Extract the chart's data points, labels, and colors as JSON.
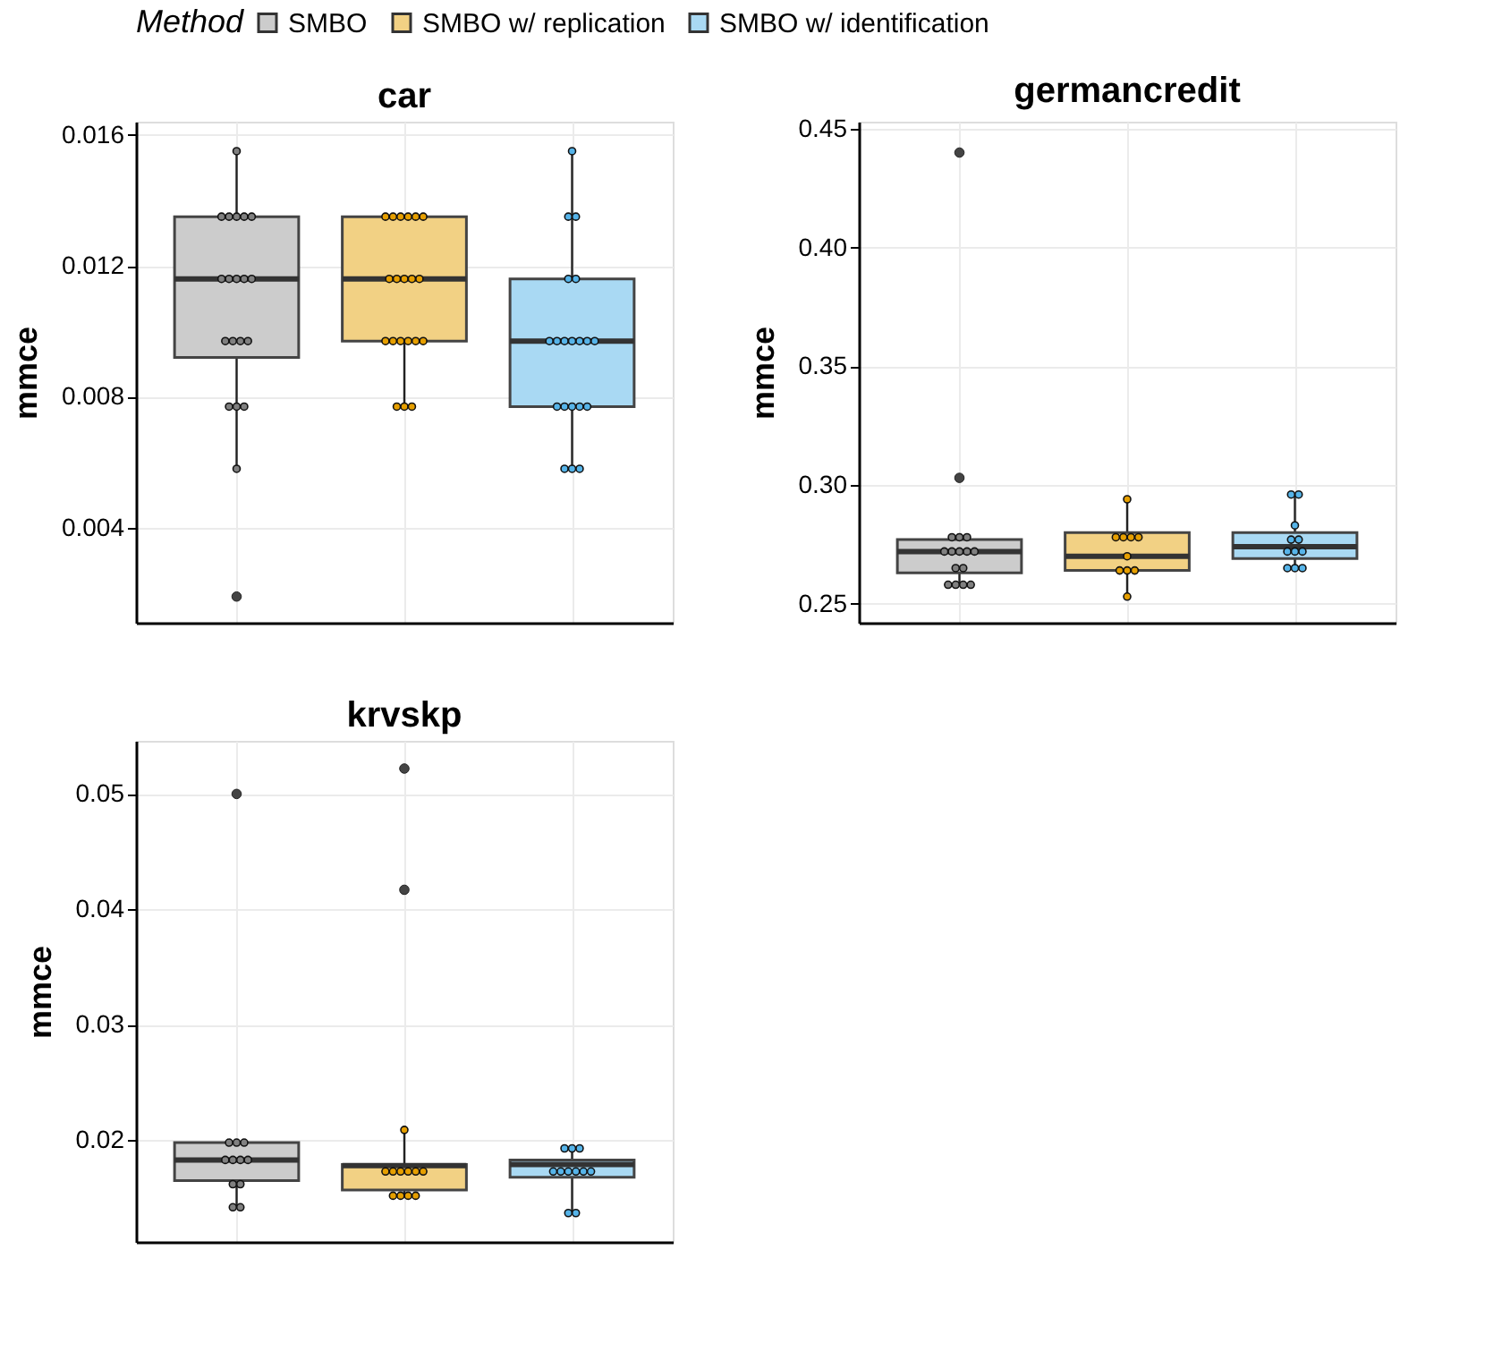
{
  "chart_data": [
    {
      "type": "box",
      "title": "car",
      "ylabel": "mmce",
      "legend": "top",
      "legend_title": "Method",
      "categories": [
        null,
        null,
        null
      ],
      "series": [
        {
          "type": "box",
          "name": "SMBO",
          "color": "#cccccc",
          "boxes": [
            {
              "low": 0.0058,
              "q1": 0.0092,
              "median": 0.0116,
              "q3": 0.0135,
              "high": 0.0155,
              "outliers": [
                0.0019
              ]
            },
            null,
            null
          ]
        },
        {
          "type": "box",
          "name": "SMBO w/ replication",
          "color": "#f2d184",
          "boxes": [
            null,
            {
              "low": 0.0077,
              "q1": 0.0097,
              "median": 0.0116,
              "q3": 0.0135,
              "high": 0.0135
            },
            null
          ]
        },
        {
          "type": "box",
          "name": "SMBO w/ identification",
          "color": "#a9d9f3",
          "boxes": [
            null,
            null,
            {
              "low": 0.0058,
              "q1": 0.0077,
              "median": 0.0097,
              "q3": 0.0116,
              "high": 0.0155
            }
          ]
        },
        {
          "type": "scatter",
          "colors": [
            "#808080",
            "#e69f00",
            "#56b4e9"
          ],
          "values": [
            0.0155,
            0.0135,
            0.0155
          ]
        },
        {
          "type": "scatter",
          "colors": [
            "#808080",
            "#e69f00",
            "#56b4e9"
          ],
          "values": [
            0.0135,
            0.0135,
            0.0135
          ]
        },
        {
          "type": "scatter",
          "colors": [
            "#808080",
            "#e69f00",
            "#56b4e9"
          ],
          "values": [
            0.0135,
            0.0135,
            0.0135
          ]
        },
        {
          "type": "scatter",
          "colors": [
            "#808080",
            "#e69f00",
            "#56b4e9"
          ],
          "values": [
            0.0135,
            0.0135,
            0.0116
          ]
        },
        {
          "type": "scatter",
          "colors": [
            "#808080",
            "#e69f00",
            "#56b4e9"
          ],
          "values": [
            0.0135,
            0.0135,
            0.0116
          ]
        },
        {
          "type": "scatter",
          "colors": [
            "#808080",
            "#e69f00",
            "#56b4e9"
          ],
          "values": [
            0.0135,
            0.0135,
            0.0097
          ]
        },
        {
          "type": "scatter",
          "colors": [
            "#808080",
            "#e69f00",
            "#56b4e9"
          ],
          "values": [
            0.0116,
            0.0116,
            0.0097
          ]
        },
        {
          "type": "scatter",
          "colors": [
            "#808080",
            "#e69f00",
            "#56b4e9"
          ],
          "values": [
            0.0116,
            0.0116,
            0.0097
          ]
        },
        {
          "type": "scatter",
          "colors": [
            "#808080",
            "#e69f00",
            "#56b4e9"
          ],
          "values": [
            0.0116,
            0.0116,
            0.0097
          ]
        },
        {
          "type": "scatter",
          "colors": [
            "#808080",
            "#e69f00",
            "#56b4e9"
          ],
          "values": [
            0.0116,
            0.0116,
            0.0097
          ]
        },
        {
          "type": "scatter",
          "colors": [
            "#808080",
            "#e69f00",
            "#56b4e9"
          ],
          "values": [
            0.0116,
            0.0116,
            0.0097
          ]
        },
        {
          "type": "scatter",
          "colors": [
            "#808080",
            "#e69f00",
            "#56b4e9"
          ],
          "values": [
            0.0097,
            0.0097,
            0.0097
          ]
        },
        {
          "type": "scatter",
          "colors": [
            "#808080",
            "#e69f00",
            "#56b4e9"
          ],
          "values": [
            0.0097,
            0.0097,
            0.0077
          ]
        },
        {
          "type": "scatter",
          "colors": [
            "#808080",
            "#e69f00",
            "#56b4e9"
          ],
          "values": [
            0.0097,
            0.0097,
            0.0077
          ]
        },
        {
          "type": "scatter",
          "colors": [
            "#808080",
            "#e69f00",
            "#56b4e9"
          ],
          "values": [
            0.0097,
            0.0097,
            0.0077
          ]
        },
        {
          "type": "scatter",
          "colors": [
            "#808080",
            "#e69f00",
            "#56b4e9"
          ],
          "values": [
            0.0077,
            0.0097,
            0.0077
          ]
        },
        {
          "type": "scatter",
          "colors": [
            "#808080",
            "#e69f00",
            "#56b4e9"
          ],
          "values": [
            0.0077,
            0.0097,
            0.0077
          ]
        },
        {
          "type": "scatter",
          "colors": [
            "#808080",
            "#e69f00",
            "#56b4e9"
          ],
          "values": [
            0.0077,
            0.0077,
            0.0058
          ]
        },
        {
          "type": "scatter",
          "colors": [
            "#808080",
            "#e69f00",
            "#56b4e9"
          ],
          "values": [
            0.0058,
            0.0077,
            0.0058
          ]
        },
        {
          "type": "scatter",
          "colors": [
            "#808080",
            "#e69f00",
            "#56b4e9"
          ],
          "values": [
            null,
            0.0077,
            0.0058
          ]
        }
      ],
      "ylim": [
        0.0011,
        0.0164
      ],
      "yticks": [
        0.004,
        0.008,
        0.012,
        0.016
      ],
      "grid": true,
      "tick_labels": "y"
    },
    {
      "type": "box",
      "title": "germancredit",
      "ylabel": "mmce",
      "categories": [
        null,
        null,
        null
      ],
      "series": [
        {
          "type": "box",
          "color": "#cccccc",
          "boxes": [
            {
              "low": 0.258,
              "q1": 0.263,
              "median": 0.272,
              "q3": 0.277,
              "high": 0.278,
              "outliers": [
                0.44,
                0.303
              ]
            },
            null,
            null
          ]
        },
        {
          "type": "box",
          "color": "#f2d184",
          "boxes": [
            null,
            {
              "low": 0.253,
              "q1": 0.264,
              "median": 0.27,
              "q3": 0.28,
              "high": 0.294
            },
            null
          ]
        },
        {
          "type": "box",
          "color": "#a9d9f3",
          "boxes": [
            null,
            null,
            {
              "low": 0.265,
              "q1": 0.269,
              "median": 0.274,
              "q3": 0.28,
              "high": 0.296
            }
          ]
        },
        {
          "type": "scatter",
          "colors": [
            "#808080",
            "#e69f00",
            "#56b4e9"
          ],
          "values": [
            0.278,
            0.294,
            0.296
          ]
        },
        {
          "type": "scatter",
          "colors": [
            "#808080",
            "#e69f00",
            "#56b4e9"
          ],
          "values": [
            0.278,
            0.278,
            0.296
          ]
        },
        {
          "type": "scatter",
          "colors": [
            "#808080",
            "#e69f00",
            "#56b4e9"
          ],
          "values": [
            0.278,
            0.278,
            0.283
          ]
        },
        {
          "type": "scatter",
          "colors": [
            "#808080",
            "#e69f00",
            "#56b4e9"
          ],
          "values": [
            0.272,
            0.278,
            0.277
          ]
        },
        {
          "type": "scatter",
          "colors": [
            "#808080",
            "#e69f00",
            "#56b4e9"
          ],
          "values": [
            0.272,
            0.278,
            0.277
          ]
        },
        {
          "type": "scatter",
          "colors": [
            "#808080",
            "#e69f00",
            "#56b4e9"
          ],
          "values": [
            0.272,
            0.27,
            0.272
          ]
        },
        {
          "type": "scatter",
          "colors": [
            "#808080",
            "#e69f00",
            "#56b4e9"
          ],
          "values": [
            0.272,
            0.264,
            0.272
          ]
        },
        {
          "type": "scatter",
          "colors": [
            "#808080",
            "#e69f00",
            "#56b4e9"
          ],
          "values": [
            0.272,
            0.264,
            0.272
          ]
        },
        {
          "type": "scatter",
          "colors": [
            "#808080",
            "#e69f00",
            "#56b4e9"
          ],
          "values": [
            0.265,
            0.264,
            0.265
          ]
        },
        {
          "type": "scatter",
          "colors": [
            "#808080",
            "#e69f00",
            "#56b4e9"
          ],
          "values": [
            0.265,
            0.253,
            0.265
          ]
        },
        {
          "type": "scatter",
          "colors": [
            "#808080",
            "#e69f00",
            "#56b4e9"
          ],
          "values": [
            0.258,
            null,
            0.265
          ]
        },
        {
          "type": "scatter",
          "colors": [
            "#808080",
            "#e69f00",
            "#56b4e9"
          ],
          "values": [
            0.258,
            null,
            null
          ]
        },
        {
          "type": "scatter",
          "colors": [
            "#808080",
            "#e69f00",
            "#56b4e9"
          ],
          "values": [
            0.258,
            null,
            null
          ]
        },
        {
          "type": "scatter",
          "colors": [
            "#808080",
            "#e69f00",
            "#56b4e9"
          ],
          "values": [
            0.258,
            null,
            null
          ]
        }
      ],
      "ylim": [
        0.242,
        0.453
      ],
      "yticks": [
        0.25,
        {
          "value": 0.3,
          "label": "0.30"
        },
        0.35,
        {
          "value": 0.4,
          "label": "0.40"
        },
        0.45
      ],
      "grid": true,
      "tick_labels": "y"
    },
    {
      "type": "box",
      "title": "krvskp",
      "ylabel": "mmce",
      "categories": [
        null,
        null,
        null
      ],
      "series": [
        {
          "type": "box",
          "color": "#cccccc",
          "boxes": [
            {
              "low": 0.0142,
              "q1": 0.0165,
              "median": 0.0183,
              "q3": 0.0198,
              "high": 0.0198,
              "outliers": [
                0.05
              ]
            },
            null,
            null
          ]
        },
        {
          "type": "box",
          "color": "#f2d184",
          "boxes": [
            null,
            {
              "low": 0.0152,
              "q1": 0.0157,
              "median": 0.0178,
              "q3": 0.0179,
              "high": 0.0209,
              "outliers": [
                0.0522,
                0.0417
              ]
            },
            null
          ]
        },
        {
          "type": "box",
          "color": "#a9d9f3",
          "boxes": [
            null,
            null,
            {
              "low": 0.0137,
              "q1": 0.0168,
              "median": 0.0179,
              "q3": 0.0183,
              "high": 0.0193
            }
          ]
        },
        {
          "type": "scatter",
          "colors": [
            "#808080",
            "#e69f00",
            "#56b4e9"
          ],
          "values": [
            0.0198,
            0.0209,
            0.0193
          ]
        },
        {
          "type": "scatter",
          "colors": [
            "#808080",
            "#e69f00",
            "#56b4e9"
          ],
          "values": [
            0.0198,
            0.0173,
            0.0193
          ]
        },
        {
          "type": "scatter",
          "colors": [
            "#808080",
            "#e69f00",
            "#56b4e9"
          ],
          "values": [
            0.0198,
            0.0173,
            0.0193
          ]
        },
        {
          "type": "scatter",
          "colors": [
            "#808080",
            "#e69f00",
            "#56b4e9"
          ],
          "values": [
            0.0183,
            0.0173,
            0.0173
          ]
        },
        {
          "type": "scatter",
          "colors": [
            "#808080",
            "#e69f00",
            "#56b4e9"
          ],
          "values": [
            0.0183,
            0.0173,
            0.0173
          ]
        },
        {
          "type": "scatter",
          "colors": [
            "#808080",
            "#e69f00",
            "#56b4e9"
          ],
          "values": [
            0.0183,
            0.0173,
            0.0173
          ]
        },
        {
          "type": "scatter",
          "colors": [
            "#808080",
            "#e69f00",
            "#56b4e9"
          ],
          "values": [
            0.0183,
            0.0173,
            0.0173
          ]
        },
        {
          "type": "scatter",
          "colors": [
            "#808080",
            "#e69f00",
            "#56b4e9"
          ],
          "values": [
            0.0162,
            0.0152,
            0.0173
          ]
        },
        {
          "type": "scatter",
          "colors": [
            "#808080",
            "#e69f00",
            "#56b4e9"
          ],
          "values": [
            0.0162,
            0.0152,
            0.0173
          ]
        },
        {
          "type": "scatter",
          "colors": [
            "#808080",
            "#e69f00",
            "#56b4e9"
          ],
          "values": [
            0.0142,
            0.0152,
            0.0137
          ]
        },
        {
          "type": "scatter",
          "colors": [
            "#808080",
            "#e69f00",
            "#56b4e9"
          ],
          "values": [
            0.0142,
            0.0152,
            0.0137
          ]
        }
      ],
      "ylim": [
        0.0112,
        0.0546
      ],
      "yticks": [
        0.02,
        0.03,
        0.04,
        0.05
      ],
      "grid": true,
      "tick_labels": "y"
    }
  ]
}
